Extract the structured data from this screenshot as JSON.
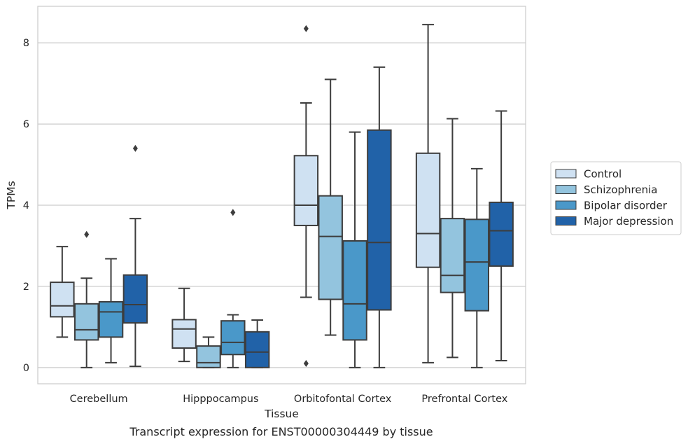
{
  "chart_data": {
    "type": "box",
    "caption": "Transcript expression for ENST00000304449 by tissue",
    "xlabel": "Tissue",
    "ylabel": "TPMs",
    "ylim": [
      -0.4,
      8.9
    ],
    "yticks": [
      "0",
      "2",
      "4",
      "6",
      "8"
    ],
    "grid": true,
    "legend_position": "right",
    "categories": [
      "Cerebellum",
      "Hipppocampus",
      "Orbitofontal Cortex",
      "Prefrontal Cortex"
    ],
    "series": [
      {
        "name": "Control",
        "color": "#cfe1f2",
        "boxes": [
          {
            "whisker_low": 0.75,
            "q1": 1.25,
            "median": 1.52,
            "q3": 2.1,
            "whisker_high": 2.98,
            "outliers": []
          },
          {
            "whisker_low": 0.15,
            "q1": 0.48,
            "median": 0.95,
            "q3": 1.18,
            "whisker_high": 1.95,
            "outliers": []
          },
          {
            "whisker_low": 1.73,
            "q1": 3.5,
            "median": 4.0,
            "q3": 5.22,
            "whisker_high": 6.52,
            "outliers": [
              8.35,
              0.1
            ]
          },
          {
            "whisker_low": 0.12,
            "q1": 2.47,
            "median": 3.3,
            "q3": 5.28,
            "whisker_high": 8.45,
            "outliers": []
          }
        ]
      },
      {
        "name": "Schizophrenia",
        "color": "#93c4de",
        "boxes": [
          {
            "whisker_low": 0.0,
            "q1": 0.68,
            "median": 0.93,
            "q3": 1.57,
            "whisker_high": 2.2,
            "outliers": [
              3.28
            ]
          },
          {
            "whisker_low": 0.0,
            "q1": 0.0,
            "median": 0.12,
            "q3": 0.53,
            "whisker_high": 0.75,
            "outliers": []
          },
          {
            "whisker_low": 0.8,
            "q1": 1.68,
            "median": 3.23,
            "q3": 4.23,
            "whisker_high": 7.1,
            "outliers": []
          },
          {
            "whisker_low": 0.25,
            "q1": 1.85,
            "median": 2.27,
            "q3": 3.67,
            "whisker_high": 6.13,
            "outliers": []
          }
        ]
      },
      {
        "name": "Bipolar disorder",
        "color": "#4a98c9",
        "boxes": [
          {
            "whisker_low": 0.12,
            "q1": 0.75,
            "median": 1.37,
            "q3": 1.62,
            "whisker_high": 2.68,
            "outliers": []
          },
          {
            "whisker_low": 0.0,
            "q1": 0.32,
            "median": 0.62,
            "q3": 1.15,
            "whisker_high": 1.3,
            "outliers": [
              3.82
            ]
          },
          {
            "whisker_low": 0.0,
            "q1": 0.68,
            "median": 1.57,
            "q3": 3.12,
            "whisker_high": 5.8,
            "outliers": []
          },
          {
            "whisker_low": 0.0,
            "q1": 1.4,
            "median": 2.6,
            "q3": 3.65,
            "whisker_high": 4.9,
            "outliers": []
          }
        ]
      },
      {
        "name": "Major depression",
        "color": "#2162a8",
        "boxes": [
          {
            "whisker_low": 0.03,
            "q1": 1.1,
            "median": 1.55,
            "q3": 2.28,
            "whisker_high": 3.67,
            "outliers": [
              5.4
            ]
          },
          {
            "whisker_low": 0.0,
            "q1": 0.0,
            "median": 0.38,
            "q3": 0.88,
            "whisker_high": 1.17,
            "outliers": []
          },
          {
            "whisker_low": 0.0,
            "q1": 1.42,
            "median": 3.08,
            "q3": 5.85,
            "whisker_high": 7.4,
            "outliers": []
          },
          {
            "whisker_low": 0.17,
            "q1": 2.5,
            "median": 3.37,
            "q3": 4.07,
            "whisker_high": 6.32,
            "outliers": []
          }
        ]
      }
    ]
  }
}
